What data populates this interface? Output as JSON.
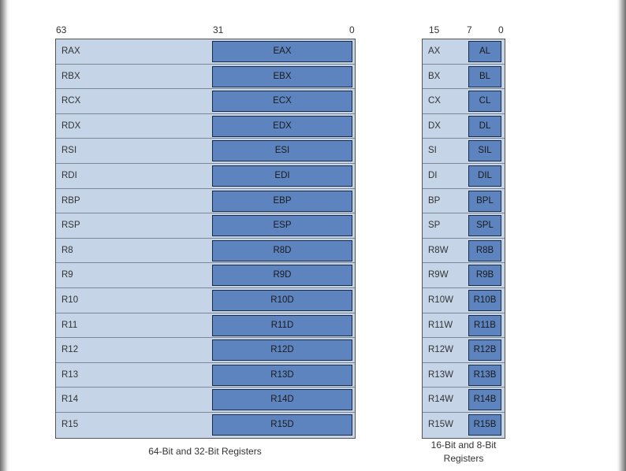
{
  "bit_labels_64": [
    "63",
    "31",
    "0"
  ],
  "bit_labels_16": [
    "15",
    "7",
    "0"
  ],
  "registers_64_32": [
    {
      "r64": "RAX",
      "r32": "EAX"
    },
    {
      "r64": "RBX",
      "r32": "EBX"
    },
    {
      "r64": "RCX",
      "r32": "ECX"
    },
    {
      "r64": "RDX",
      "r32": "EDX"
    },
    {
      "r64": "RSI",
      "r32": "ESI"
    },
    {
      "r64": "RDI",
      "r32": "EDI"
    },
    {
      "r64": "RBP",
      "r32": "EBP"
    },
    {
      "r64": "RSP",
      "r32": "ESP"
    },
    {
      "r64": "R8",
      "r32": "R8D"
    },
    {
      "r64": "R9",
      "r32": "R9D"
    },
    {
      "r64": "R10",
      "r32": "R10D"
    },
    {
      "r64": "R11",
      "r32": "R11D"
    },
    {
      "r64": "R12",
      "r32": "R12D"
    },
    {
      "r64": "R13",
      "r32": "R13D"
    },
    {
      "r64": "R14",
      "r32": "R14D"
    },
    {
      "r64": "R15",
      "r32": "R15D"
    }
  ],
  "registers_16_8": [
    {
      "r16": "AX",
      "r8": "AL"
    },
    {
      "r16": "BX",
      "r8": "BL"
    },
    {
      "r16": "CX",
      "r8": "CL"
    },
    {
      "r16": "DX",
      "r8": "DL"
    },
    {
      "r16": "SI",
      "r8": "SIL"
    },
    {
      "r16": "DI",
      "r8": "DIL"
    },
    {
      "r16": "BP",
      "r8": "BPL"
    },
    {
      "r16": "SP",
      "r8": "SPL"
    },
    {
      "r16": "R8W",
      "r8": "R8B"
    },
    {
      "r16": "R9W",
      "r8": "R9B"
    },
    {
      "r16": "R10W",
      "r8": "R10B"
    },
    {
      "r16": "R11W",
      "r8": "R11B"
    },
    {
      "r16": "R12W",
      "r8": "R12B"
    },
    {
      "r16": "R13W",
      "r8": "R13B"
    },
    {
      "r16": "R14W",
      "r8": "R14B"
    },
    {
      "r16": "R15W",
      "r8": "R15B"
    }
  ],
  "captions": {
    "left": "64-Bit and 32-Bit Registers",
    "right_line1": "16-Bit and 8-Bit",
    "right_line2": "Registers"
  },
  "colors": {
    "outer_register": "#c5d5e7",
    "inner_register": "#5e84bf"
  }
}
